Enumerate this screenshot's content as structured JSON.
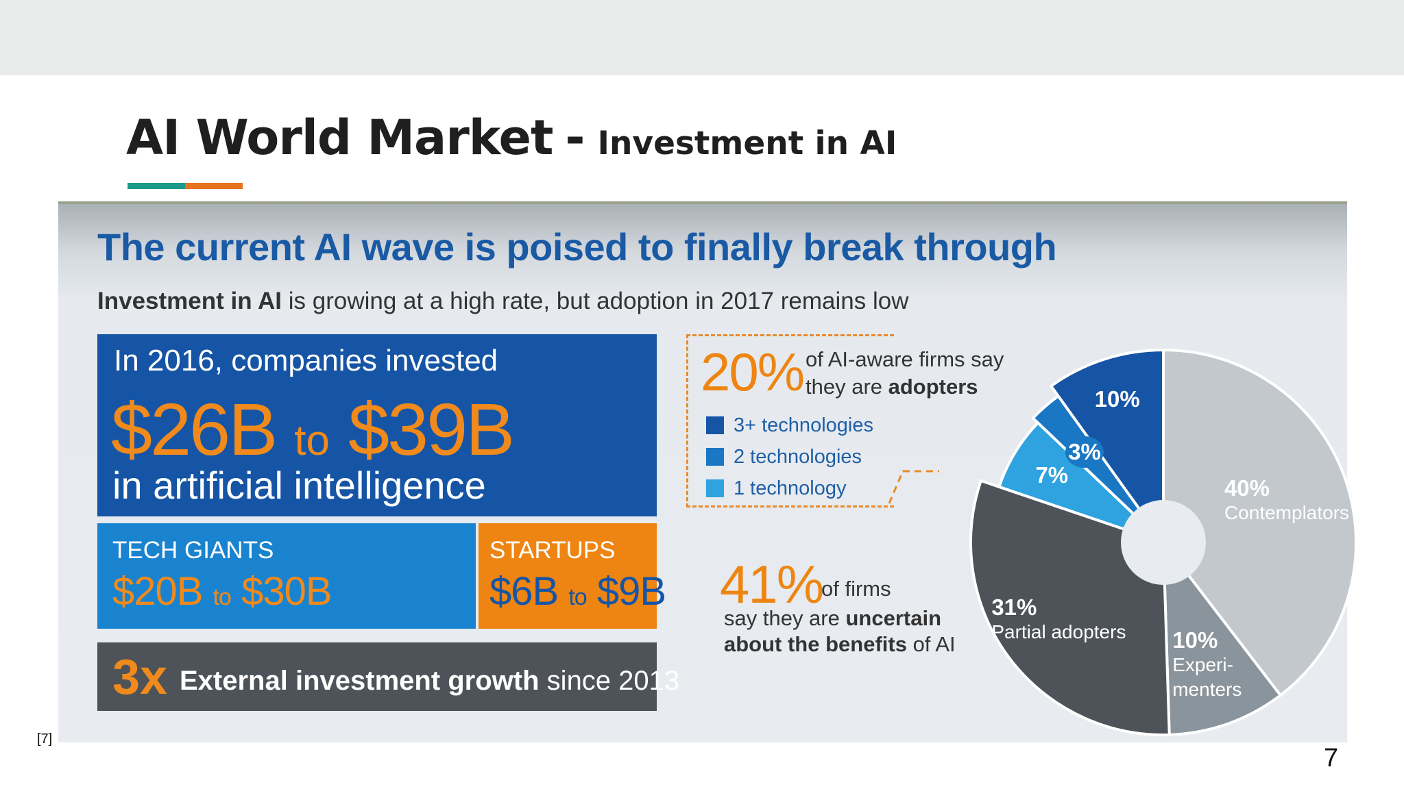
{
  "slide": {
    "title": "AI World Market",
    "separator": "-",
    "subtitle": "Investment in AI",
    "citation": "[7]",
    "page_number": "7",
    "accent_colors": [
      "#1a9a8a",
      "#e8731e"
    ]
  },
  "infographic": {
    "headline": "The current AI wave is poised to finally break through",
    "subhead_bold": "Investment in AI",
    "subhead_rest": " is growing at a high rate, but adoption in 2017 remains low",
    "investment": {
      "line1": "In 2016, companies invested",
      "amount_low": "$26B",
      "to": "to",
      "amount_high": "$39B",
      "line3": "in artificial intelligence"
    },
    "tech_giants": {
      "label": "TECH GIANTS",
      "low": "$20B",
      "to": "to",
      "high": "$30B"
    },
    "startups": {
      "label": "STARTUPS",
      "low": "$6B",
      "to": "to",
      "high": "$9B"
    },
    "growth": {
      "multiplier": "3x",
      "bold": "External investment growth",
      "rest": " since 2013"
    },
    "adopters": {
      "pct": "20%",
      "line1": "of AI-aware firms say",
      "line2_pre": "they are ",
      "line2_bold": "adopters",
      "legend": [
        {
          "label": "3+ technologies",
          "color": "#1655a5"
        },
        {
          "label": "2 technologies",
          "color": "#1a77c4"
        },
        {
          "label": "1 technology",
          "color": "#2ea3df"
        }
      ]
    },
    "uncertain": {
      "pct": "41%",
      "of": "of firms",
      "line1_pre": "say they are ",
      "line1_bold": "uncertain",
      "line2_bold": "about the benefits",
      "line2_rest": " of AI"
    },
    "pie": {
      "segments": [
        {
          "name": "3+ technologies",
          "value": 10,
          "label": "10%",
          "color": "#1655a5"
        },
        {
          "name": "2 technologies",
          "value": 3,
          "label": "3%",
          "color": "#1a77c4"
        },
        {
          "name": "1 technology",
          "value": 7,
          "label": "7%",
          "color": "#2ea3df"
        },
        {
          "name": "Partial adopters",
          "value": 31,
          "label": "31%",
          "sublabel": "Partial adopters",
          "color": "#4d5358"
        },
        {
          "name": "Experimenters",
          "value": 10,
          "label": "10%",
          "sublabel": "Experi-\nmenters",
          "color": "#8a949c"
        },
        {
          "name": "Contemplators",
          "value": 40,
          "label": "40%",
          "sublabel": "Contemplators",
          "color": "#c3c8cd"
        }
      ]
    }
  }
}
